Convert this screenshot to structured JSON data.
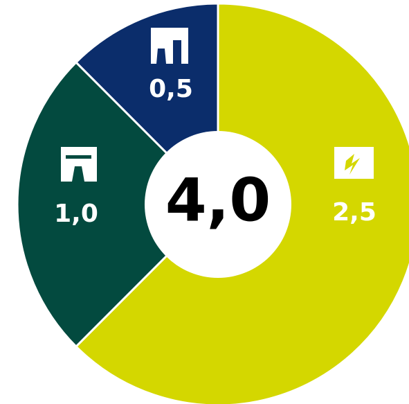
{
  "chart_data": {
    "type": "donut",
    "categories": [
      null,
      null,
      null
    ],
    "values": [
      2.5,
      1.0,
      0.5
    ],
    "value_labels": [
      "2,5",
      "1,0",
      "0,5"
    ],
    "colors": [
      "#d4d700",
      "#034a3f",
      "#0b2d6b"
    ],
    "center_label": "4,0"
  }
}
